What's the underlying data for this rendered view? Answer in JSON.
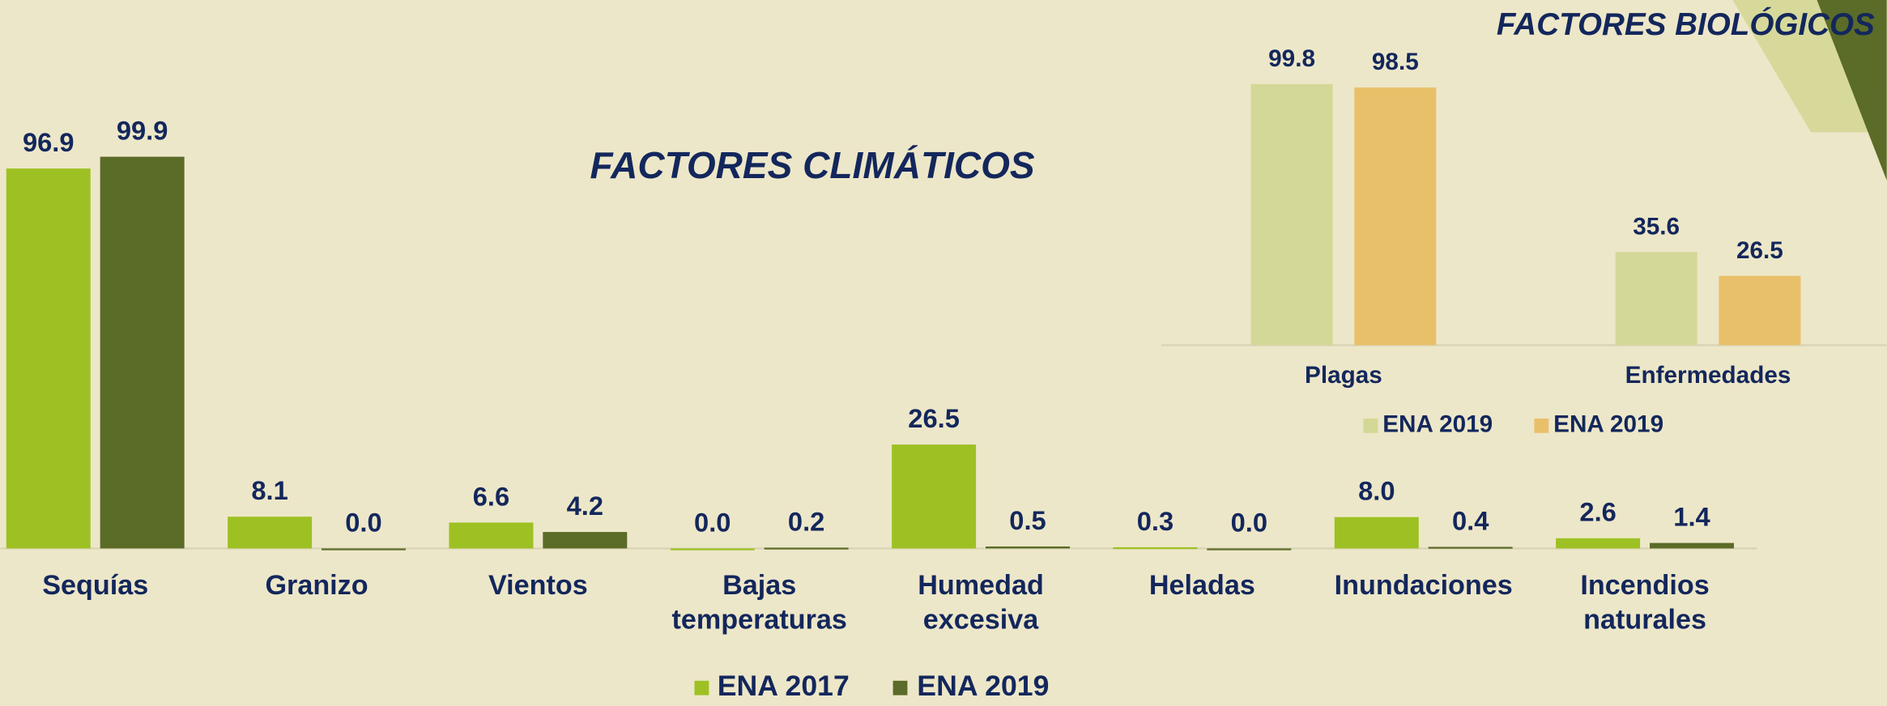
{
  "chart_data": [
    {
      "type": "bar",
      "title": "FACTORES CLIMÁTICOS",
      "categories": [
        "Sequías",
        "Granizo",
        "Vientos",
        "Bajas temperaturas",
        "Humedad excesiva",
        "Heladas",
        "Inundaciones",
        "Incendios naturales"
      ],
      "series": [
        {
          "name": "ENA 2017",
          "color": "#9dc123",
          "values": [
            96.9,
            8.1,
            6.6,
            0,
            26.5,
            0.3,
            8,
            2.6
          ],
          "value_labels": [
            "96.9",
            "8.1",
            "6.6",
            "0.0",
            "26.5",
            "0.3",
            "8.0",
            "2.6"
          ]
        },
        {
          "name": "ENA 2019",
          "color": "#5b6b28",
          "values": [
            99.9,
            0,
            4.2,
            0.2,
            0.5,
            0,
            0.4,
            1.4
          ],
          "value_labels": [
            "99.9",
            "0.0",
            "4.2",
            "0.2",
            "0.5",
            "0.0",
            "0.4",
            "1.4"
          ]
        }
      ],
      "ylim": [
        0,
        100
      ],
      "legend": "bottom"
    },
    {
      "type": "bar",
      "title": "FACTORES BIOLÓGICOS",
      "categories": [
        "Plagas",
        "Enfermedades"
      ],
      "series": [
        {
          "name": "ENA 2019",
          "color": "#d3d897",
          "values": [
            99.8,
            35.6
          ]
        },
        {
          "name": "ENA 2019",
          "color": "#e9c06a",
          "values": [
            98.5,
            26.5
          ]
        }
      ],
      "ylim": [
        0,
        100
      ],
      "legend": "bottom"
    }
  ]
}
